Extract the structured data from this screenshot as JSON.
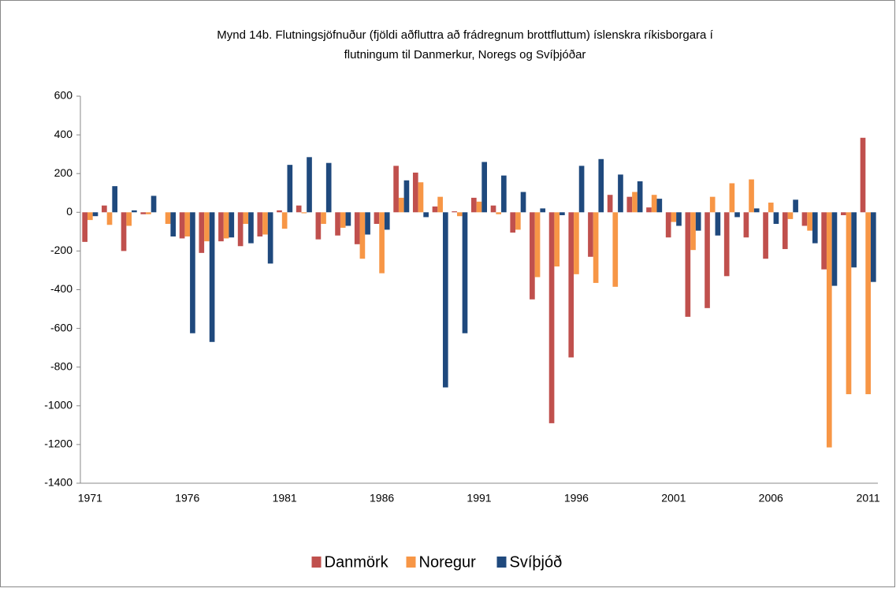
{
  "chart_data": {
    "type": "bar",
    "title": [
      "Mynd 14b. Flutningsjöfnuður (fjöldi aðfluttra að frádregnum brottfluttum) íslenskra ríkisborgara í",
      "flutningum til Danmerkur, Noregs og Svíþjóðar"
    ],
    "categories": [
      "1971",
      null,
      null,
      null,
      null,
      "1976",
      null,
      null,
      null,
      null,
      "1981",
      null,
      null,
      null,
      null,
      "1986",
      null,
      null,
      null,
      null,
      "1991",
      null,
      null,
      null,
      null,
      "1996",
      null,
      null,
      null,
      null,
      "2001",
      null,
      null,
      null,
      null,
      "2006",
      null,
      null,
      null,
      null,
      "2011"
    ],
    "series": [
      {
        "name": "Danmörk",
        "color": "#c0504d",
        "values": [
          -153,
          35,
          -200,
          -10,
          0,
          -135,
          -210,
          -150,
          -175,
          -125,
          10,
          35,
          -140,
          -120,
          -165,
          -60,
          240,
          205,
          30,
          5,
          75,
          35,
          -105,
          -450,
          -1090,
          -750,
          -230,
          90,
          80,
          25,
          -130,
          -540,
          -495,
          -330,
          -130,
          -240,
          -190,
          -70,
          -295,
          -15,
          385
        ]
      },
      {
        "name": "Noregur",
        "color": "#f79646",
        "values": [
          -40,
          -65,
          -70,
          -10,
          -60,
          -125,
          -150,
          -135,
          -60,
          -115,
          -85,
          -5,
          -60,
          -80,
          -240,
          -315,
          75,
          155,
          80,
          -20,
          55,
          -10,
          -90,
          -335,
          -280,
          -320,
          -365,
          -385,
          105,
          90,
          -50,
          -195,
          80,
          150,
          170,
          50,
          -35,
          -95,
          -1215,
          -940,
          -940
        ]
      },
      {
        "name": "Svíþjóð",
        "color": "#1f497d",
        "values": [
          -20,
          135,
          10,
          85,
          -125,
          -625,
          -670,
          -130,
          -160,
          -265,
          245,
          285,
          255,
          -70,
          -115,
          -90,
          165,
          -25,
          -905,
          -625,
          260,
          190,
          105,
          20,
          -15,
          240,
          275,
          195,
          160,
          70,
          -70,
          -95,
          -120,
          -25,
          20,
          -60,
          65,
          -160,
          -380,
          -285,
          -360
        ]
      }
    ],
    "ylim": [
      -1400,
      600
    ],
    "yticks": [
      -1400,
      -1200,
      -1000,
      -800,
      -600,
      -400,
      -200,
      0,
      200,
      400,
      600
    ],
    "grid": false,
    "legend": "bottom"
  }
}
